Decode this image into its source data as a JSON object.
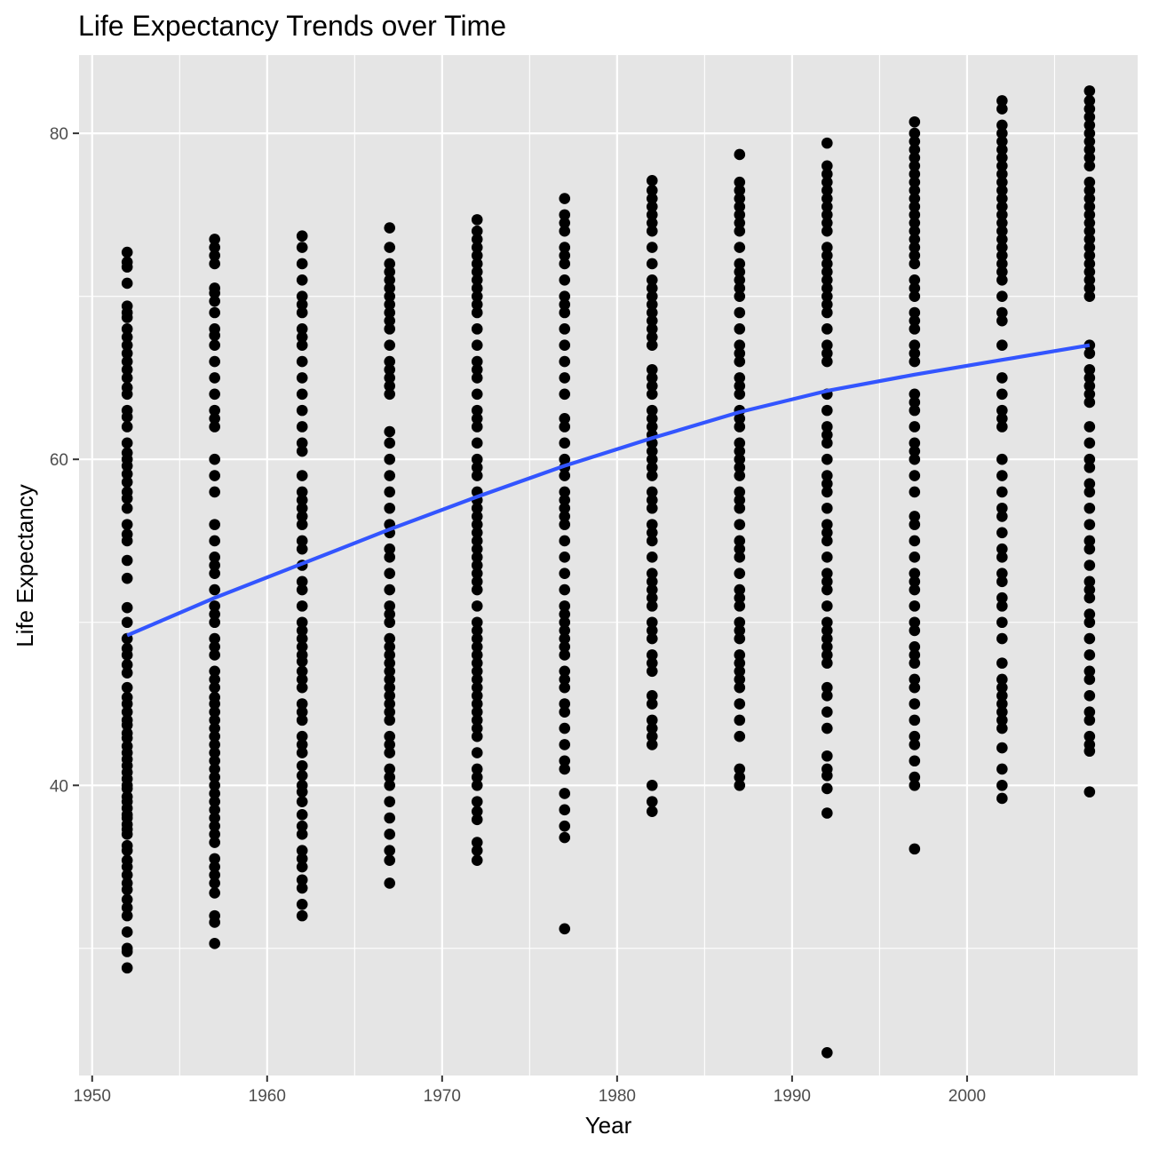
{
  "chart_data": {
    "type": "scatter",
    "title": "Life Expectancy Trends over Time",
    "xlabel": "Year",
    "ylabel": "Life Expectancy",
    "xlim": [
      1949.25,
      2009.75
    ],
    "ylim": [
      22.2,
      84.8
    ],
    "x_ticks": [
      1950,
      1960,
      1970,
      1980,
      1990,
      2000
    ],
    "x_tick_labels": [
      "1950",
      "1960",
      "1970",
      "1980",
      "1990",
      "2000"
    ],
    "y_ticks": [
      40,
      60,
      80
    ],
    "y_tick_labels": [
      "40",
      "60",
      "80"
    ],
    "grid": true,
    "legend": "none",
    "colors": {
      "panel": "#e5e5e5",
      "grid": "#ffffff",
      "points": "#000000",
      "trend": "#3355ff"
    },
    "points_by_year": [
      {
        "year": 1952,
        "min": 28.8,
        "max": 72.7,
        "values": [
          28.8,
          29.8,
          30.0,
          31.0,
          32.0,
          32.5,
          33.0,
          33.6,
          34.0,
          34.5,
          35.0,
          35.4,
          36.0,
          36.3,
          37.0,
          37.3,
          37.6,
          38.0,
          38.2,
          38.6,
          39.0,
          39.3,
          39.8,
          40.0,
          40.4,
          40.8,
          41.2,
          41.6,
          42.0,
          42.4,
          42.9,
          43.2,
          43.7,
          44.0,
          44.5,
          45.0,
          45.4,
          46.0,
          46.9,
          47.4,
          48.0,
          48.4,
          49.0,
          50.0,
          50.9,
          52.7,
          53.8,
          55.0,
          55.4,
          56.0,
          57.0,
          57.6,
          58.0,
          58.6,
          59.1,
          59.6,
          60.0,
          60.4,
          61.0,
          62.0,
          62.6,
          63.0,
          64.0,
          64.4,
          65.0,
          65.5,
          66.0,
          66.5,
          67.0,
          67.5,
          68.0,
          68.7,
          69.0,
          69.4,
          70.8,
          71.8,
          72.1,
          72.7
        ]
      },
      {
        "year": 1957,
        "min": 30.3,
        "max": 73.5,
        "values": [
          30.3,
          31.6,
          32.0,
          33.4,
          34.0,
          34.5,
          35.0,
          35.5,
          36.5,
          37.0,
          37.5,
          38.0,
          38.5,
          39.0,
          39.5,
          40.0,
          40.5,
          41.0,
          41.5,
          42.0,
          42.5,
          43.0,
          43.5,
          44.0,
          44.5,
          45.0,
          45.4,
          46.0,
          46.5,
          47.0,
          48.0,
          48.5,
          49.0,
          50.0,
          50.5,
          51.0,
          52.0,
          53.0,
          53.5,
          54.0,
          55.0,
          56.0,
          58.0,
          59.0,
          60.0,
          62.0,
          62.5,
          63.0,
          64.0,
          65.0,
          66.0,
          67.0,
          67.6,
          68.0,
          69.0,
          69.7,
          70.2,
          70.5,
          72.0,
          72.5,
          73.0,
          73.5
        ]
      },
      {
        "year": 1962,
        "min": 32.0,
        "max": 73.7,
        "values": [
          32.0,
          32.7,
          33.7,
          34.2,
          35.0,
          35.5,
          36.0,
          37.0,
          37.5,
          38.2,
          39.0,
          39.6,
          40.0,
          40.6,
          41.2,
          42.0,
          42.5,
          43.0,
          44.0,
          44.5,
          45.0,
          46.0,
          46.5,
          47.0,
          47.6,
          48.0,
          48.5,
          49.0,
          49.5,
          50.0,
          51.0,
          52.0,
          52.5,
          53.5,
          54.5,
          55.0,
          56.0,
          56.5,
          57.0,
          57.5,
          58.0,
          59.0,
          60.5,
          61.0,
          62.0,
          63.0,
          64.0,
          65.0,
          66.0,
          67.0,
          67.5,
          68.0,
          69.0,
          69.5,
          70.0,
          71.0,
          72.0,
          73.0,
          73.7
        ]
      },
      {
        "year": 1967,
        "min": 34.0,
        "max": 74.2,
        "values": [
          34.0,
          35.4,
          36.0,
          37.0,
          38.0,
          39.0,
          40.0,
          40.5,
          41.0,
          42.0,
          42.5,
          43.0,
          44.0,
          44.5,
          45.0,
          45.5,
          46.0,
          46.5,
          47.0,
          47.5,
          48.0,
          48.5,
          49.0,
          50.0,
          50.5,
          51.0,
          52.0,
          53.0,
          54.0,
          54.5,
          55.5,
          56.0,
          57.0,
          58.0,
          59.0,
          60.0,
          61.0,
          61.7,
          64.0,
          64.5,
          65.0,
          65.5,
          66.0,
          67.0,
          68.0,
          68.5,
          69.0,
          69.5,
          70.0,
          70.5,
          71.0,
          71.5,
          72.0,
          73.0,
          74.2
        ]
      },
      {
        "year": 1972,
        "min": 35.4,
        "max": 74.7,
        "values": [
          35.4,
          36.0,
          36.5,
          37.9,
          38.4,
          39.0,
          40.0,
          40.5,
          41.0,
          42.0,
          43.0,
          43.5,
          44.0,
          44.5,
          45.0,
          45.5,
          46.0,
          46.5,
          47.0,
          47.5,
          48.0,
          48.5,
          49.0,
          49.5,
          50.0,
          51.0,
          52.0,
          52.5,
          53.0,
          53.5,
          54.0,
          54.5,
          55.0,
          55.5,
          56.0,
          56.5,
          57.0,
          57.5,
          58.0,
          59.0,
          59.5,
          60.0,
          61.0,
          62.0,
          62.5,
          63.0,
          64.0,
          65.0,
          65.5,
          66.0,
          67.0,
          68.0,
          69.0,
          69.5,
          70.0,
          70.5,
          71.0,
          71.5,
          72.0,
          72.5,
          73.0,
          73.5,
          74.0,
          74.7
        ]
      },
      {
        "year": 1977,
        "min": 31.2,
        "max": 76.0,
        "values": [
          31.2,
          36.8,
          37.5,
          38.5,
          39.5,
          41.0,
          41.5,
          42.5,
          43.5,
          44.5,
          45.0,
          46.0,
          46.5,
          47.0,
          48.0,
          48.5,
          49.0,
          49.5,
          50.0,
          50.5,
          51.0,
          52.0,
          53.0,
          54.0,
          55.0,
          56.0,
          56.5,
          57.0,
          57.5,
          58.0,
          59.0,
          59.5,
          60.0,
          61.0,
          62.0,
          62.5,
          64.0,
          65.0,
          66.0,
          67.0,
          68.0,
          69.0,
          69.5,
          70.0,
          71.0,
          72.0,
          72.5,
          73.0,
          74.0,
          74.5,
          75.0,
          76.0
        ]
      },
      {
        "year": 1982,
        "min": 38.4,
        "max": 77.1,
        "values": [
          38.4,
          39.0,
          40.0,
          42.5,
          43.0,
          43.5,
          44.0,
          45.0,
          45.5,
          47.0,
          47.5,
          48.0,
          49.0,
          49.5,
          50.0,
          51.0,
          51.5,
          52.0,
          52.5,
          53.0,
          54.0,
          55.0,
          55.5,
          56.0,
          57.0,
          57.5,
          58.0,
          59.0,
          59.5,
          60.0,
          60.5,
          61.0,
          61.5,
          62.0,
          62.5,
          63.0,
          64.0,
          64.5,
          65.0,
          65.5,
          67.0,
          67.5,
          68.0,
          68.5,
          69.0,
          69.5,
          70.0,
          70.5,
          71.0,
          72.0,
          73.0,
          74.0,
          74.5,
          75.0,
          75.5,
          76.0,
          76.5,
          77.1
        ]
      },
      {
        "year": 1987,
        "min": 40.0,
        "max": 78.7,
        "values": [
          40.0,
          40.5,
          41.0,
          43.0,
          44.0,
          45.0,
          46.0,
          46.5,
          47.0,
          47.5,
          48.0,
          49.0,
          49.5,
          50.0,
          51.0,
          51.5,
          52.0,
          53.0,
          54.0,
          54.5,
          55.0,
          56.0,
          57.0,
          57.5,
          58.0,
          59.0,
          59.5,
          60.0,
          60.5,
          61.0,
          62.0,
          62.5,
          63.0,
          64.0,
          64.5,
          65.0,
          66.0,
          66.5,
          67.0,
          68.0,
          69.0,
          70.0,
          70.5,
          71.0,
          71.5,
          72.0,
          73.0,
          74.0,
          74.5,
          75.0,
          75.5,
          76.0,
          76.5,
          77.0,
          78.7
        ]
      },
      {
        "year": 1992,
        "min": 23.6,
        "max": 79.4,
        "values": [
          23.6,
          38.3,
          39.8,
          40.6,
          41.0,
          41.8,
          43.5,
          44.5,
          45.5,
          46.0,
          47.5,
          48.0,
          48.5,
          49.0,
          49.5,
          50.0,
          51.0,
          52.0,
          52.5,
          53.0,
          54.0,
          55.0,
          55.5,
          56.0,
          57.0,
          58.0,
          58.5,
          59.0,
          60.0,
          61.0,
          61.5,
          62.0,
          63.0,
          64.0,
          66.0,
          66.5,
          67.0,
          68.0,
          69.0,
          69.5,
          70.0,
          70.5,
          71.0,
          71.5,
          72.0,
          72.5,
          73.0,
          74.0,
          74.5,
          75.0,
          75.5,
          76.0,
          76.5,
          77.0,
          77.5,
          78.0,
          79.4
        ]
      },
      {
        "year": 1997,
        "min": 36.1,
        "max": 80.7,
        "values": [
          36.1,
          40.0,
          40.5,
          41.5,
          42.5,
          43.0,
          44.0,
          45.0,
          46.0,
          46.5,
          47.5,
          48.0,
          48.5,
          49.5,
          50.0,
          51.0,
          52.0,
          52.5,
          53.0,
          54.0,
          55.0,
          56.0,
          56.5,
          58.0,
          59.0,
          60.0,
          60.5,
          61.0,
          62.0,
          63.0,
          63.5,
          64.0,
          66.0,
          66.5,
          67.0,
          68.0,
          68.5,
          69.0,
          70.0,
          70.5,
          71.0,
          72.0,
          72.5,
          73.0,
          73.5,
          74.0,
          74.5,
          75.0,
          75.5,
          76.0,
          76.5,
          77.0,
          77.5,
          78.0,
          78.5,
          79.0,
          79.5,
          80.0,
          80.7
        ]
      },
      {
        "year": 2002,
        "min": 39.2,
        "max": 82.0,
        "values": [
          39.2,
          40.0,
          41.0,
          42.3,
          43.5,
          44.0,
          44.5,
          45.0,
          45.5,
          46.0,
          46.5,
          47.5,
          49.0,
          50.0,
          51.0,
          51.5,
          52.5,
          53.0,
          54.0,
          54.5,
          55.5,
          56.5,
          57.0,
          58.0,
          59.0,
          60.0,
          62.0,
          62.5,
          63.0,
          64.0,
          65.0,
          67.0,
          68.5,
          69.0,
          70.0,
          71.0,
          71.5,
          72.0,
          72.5,
          73.0,
          73.5,
          74.0,
          74.5,
          75.0,
          75.5,
          76.0,
          76.5,
          77.0,
          77.5,
          78.0,
          78.5,
          79.0,
          79.5,
          80.0,
          80.5,
          81.5,
          82.0
        ]
      },
      {
        "year": 2007,
        "min": 39.6,
        "max": 82.6,
        "values": [
          39.6,
          42.1,
          42.5,
          43.0,
          44.0,
          44.5,
          45.5,
          46.5,
          47.0,
          48.0,
          49.0,
          50.0,
          50.5,
          51.5,
          52.0,
          52.5,
          53.5,
          54.5,
          55.0,
          56.0,
          57.0,
          58.0,
          58.5,
          59.5,
          60.0,
          61.0,
          62.0,
          63.5,
          64.0,
          64.5,
          65.0,
          65.5,
          66.5,
          67.0,
          70.0,
          70.5,
          71.0,
          71.5,
          72.0,
          72.5,
          73.0,
          73.5,
          74.0,
          74.5,
          75.0,
          75.5,
          76.0,
          76.5,
          77.0,
          78.0,
          78.5,
          79.0,
          79.5,
          80.0,
          80.5,
          81.0,
          81.5,
          82.0,
          82.6
        ]
      }
    ],
    "trend_line": {
      "x": [
        1952,
        1957,
        1962,
        1967,
        1972,
        1977,
        1982,
        1987,
        1992,
        1997,
        2002,
        2007
      ],
      "y": [
        49.2,
        51.5,
        53.6,
        55.7,
        57.7,
        59.6,
        61.3,
        62.9,
        64.2,
        65.2,
        66.1,
        67.0
      ]
    }
  }
}
